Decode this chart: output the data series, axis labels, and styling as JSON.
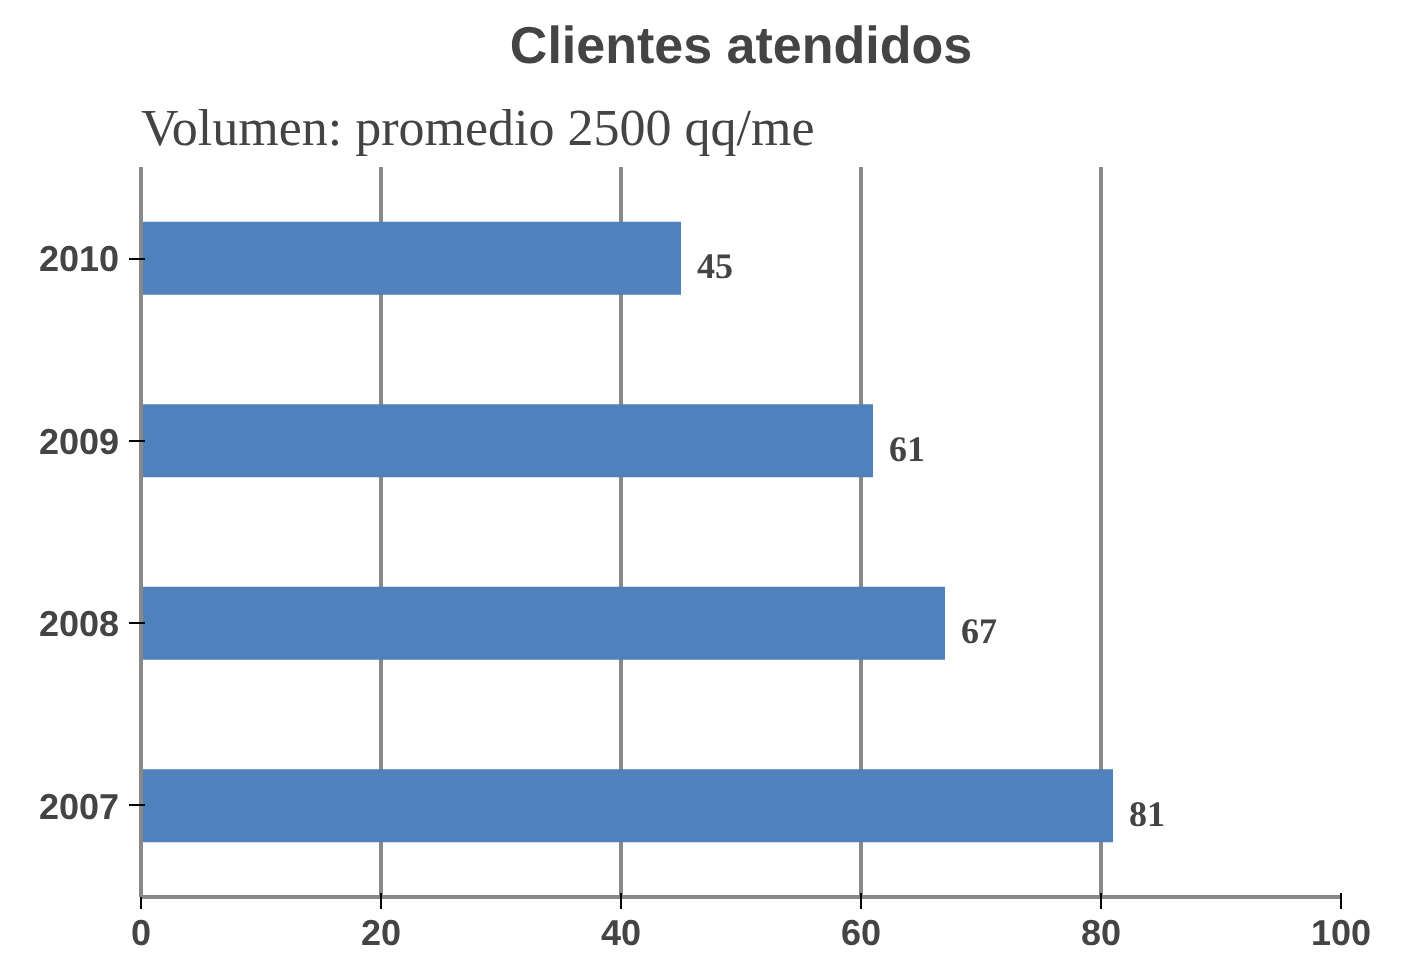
{
  "chart_data": {
    "type": "bar",
    "orientation": "horizontal",
    "title": "Clientes atendidos",
    "annotations": [
      "Volumen: promedio 2500 qq/me"
    ],
    "categories": [
      "2010",
      "2009",
      "2008",
      "2007"
    ],
    "values": [
      45,
      61,
      67,
      81
    ],
    "color": "#4f81bd",
    "xlim": [
      0,
      100
    ],
    "xticks": [
      0,
      20,
      40,
      60,
      80,
      100
    ],
    "grid": "x",
    "data_labels": true
  }
}
